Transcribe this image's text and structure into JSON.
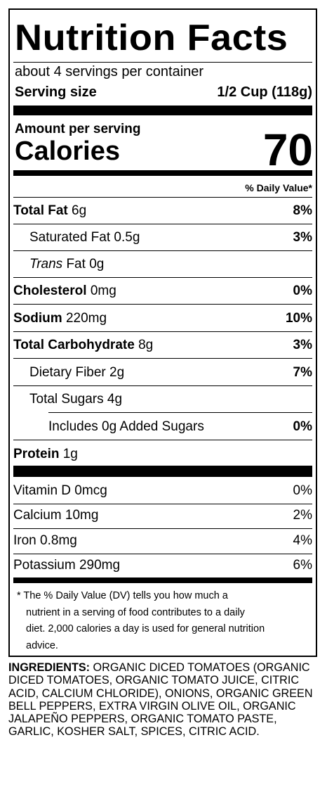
{
  "title": "Nutrition Facts",
  "servings_per_container": "about 4 servings per container",
  "serving_size_label": "Serving size",
  "serving_size_value": "1/2 Cup (118g)",
  "amount_per_serving": "Amount per serving",
  "calories_label": "Calories",
  "calories_value": "70",
  "daily_value_header": "% Daily Value*",
  "nutrients": [
    {
      "name": "Total Fat",
      "amount": "6g",
      "dv": "8%"
    },
    {
      "name": "Saturated Fat",
      "amount": "0.5g",
      "dv": "3%"
    },
    {
      "name_italic": "Trans",
      "name_rest": "Fat",
      "amount": "0g",
      "dv": ""
    },
    {
      "name": "Cholesterol",
      "amount": "0mg",
      "dv": "0%"
    },
    {
      "name": "Sodium",
      "amount": "220mg",
      "dv": "10%"
    },
    {
      "name": "Total Carbohydrate",
      "amount": "8g",
      "dv": "3%"
    },
    {
      "name": "Dietary Fiber",
      "amount": "2g",
      "dv": "7%"
    },
    {
      "name": "Total Sugars",
      "amount": "4g",
      "dv": ""
    },
    {
      "name": "Includes 0g Added Sugars",
      "amount": "",
      "dv": "0%"
    },
    {
      "name": "Protein",
      "amount": "1g",
      "dv": ""
    }
  ],
  "vitamins": [
    {
      "name": "Vitamin D",
      "amount": "0mcg",
      "dv": "0%"
    },
    {
      "name": "Calcium",
      "amount": "10mg",
      "dv": "2%"
    },
    {
      "name": "Iron",
      "amount": "0.8mg",
      "dv": "4%"
    },
    {
      "name": "Potassium",
      "amount": "290mg",
      "dv": "6%"
    }
  ],
  "footnote": {
    "line1": "* The % Daily Value (DV) tells you how much a",
    "line2": "nutrient in a serving of food contributes to a daily",
    "line3": "diet. 2,000 calories a day is used for general nutrition",
    "line4": "advice."
  },
  "ingredients": {
    "label": "INGREDIENTS:",
    "text": "ORGANIC DICED TOMATOES (ORGANIC DICED TOMATOES, ORGANIC TOMATO JUICE, CITRIC ACID, CALCIUM CHLORIDE), ONIONS, ORGANIC GREEN BELL PEPPERS, EXTRA VIRGIN OLIVE OIL, ORGANIC JALAPEÑO PEPPERS, ORGANIC TOMATO PASTE, GARLIC, KOSHER SALT, SPICES, CITRIC ACID."
  }
}
